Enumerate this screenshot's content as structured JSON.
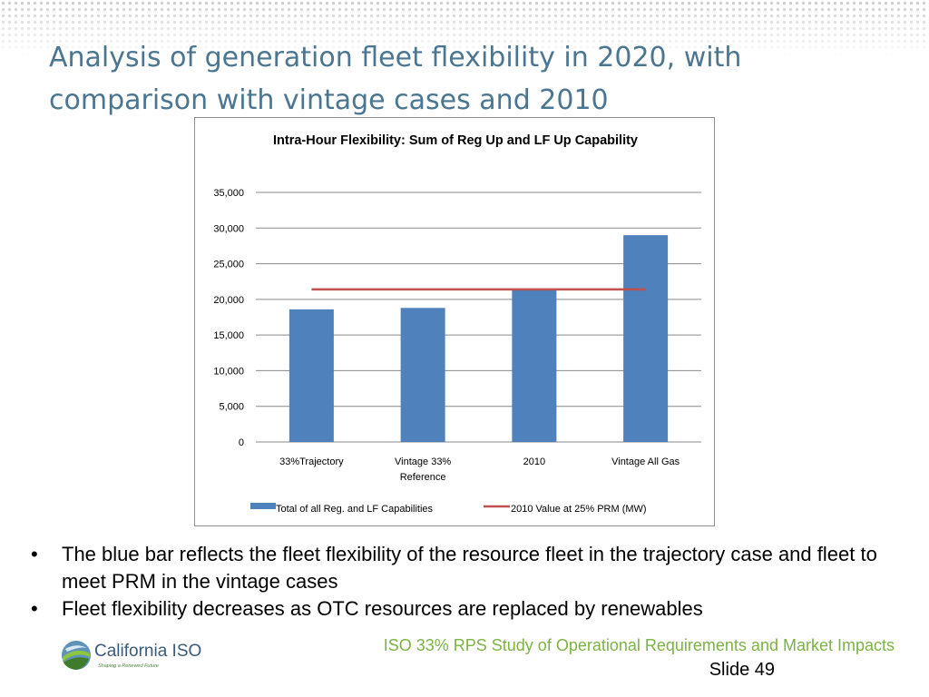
{
  "slide": {
    "title": "Analysis of generation fleet flexibility in 2020, with comparison with vintage cases and 2010",
    "bullets": [
      "The blue bar reflects the fleet flexibility of the resource fleet in the trajectory case and fleet to meet PRM in the vintage cases",
      "Fleet flexibility decreases as OTC resources are replaced by renewables"
    ],
    "footer": "ISO 33% RPS Study of Operational Requirements and Market Impacts",
    "slide_number": "Slide 49",
    "logo": {
      "name": "California ISO",
      "tagline": "Shaping a Renewed Future"
    }
  },
  "chart_data": {
    "type": "bar",
    "title": "Intra-Hour Flexibility: Sum of Reg Up and LF Up Capability",
    "categories": [
      "33% Trajectory",
      "Vintage 33% Reference",
      "2010",
      "Vintage All Gas"
    ],
    "category_labels": [
      [
        "33%Trajectory"
      ],
      [
        "Vintage 33%",
        "Reference"
      ],
      [
        "2010"
      ],
      [
        "Vintage All Gas"
      ]
    ],
    "series": [
      {
        "name": "Total of all Reg. and LF Capabilities",
        "type": "bar",
        "color": "#4f81bd",
        "values": [
          18600,
          18800,
          21400,
          29000
        ]
      },
      {
        "name": "2010 Value at 25% PRM (MW)",
        "type": "line",
        "color": "#c0504d",
        "values": [
          21400,
          21400,
          21400,
          21400
        ]
      }
    ],
    "yticks": [
      "0",
      "5,000",
      "10,000",
      "15,000",
      "20,000",
      "25,000",
      "30,000",
      "35,000"
    ],
    "ylim": [
      0,
      35000
    ],
    "ystep": 5000,
    "grid": true,
    "legend_position": "bottom"
  }
}
